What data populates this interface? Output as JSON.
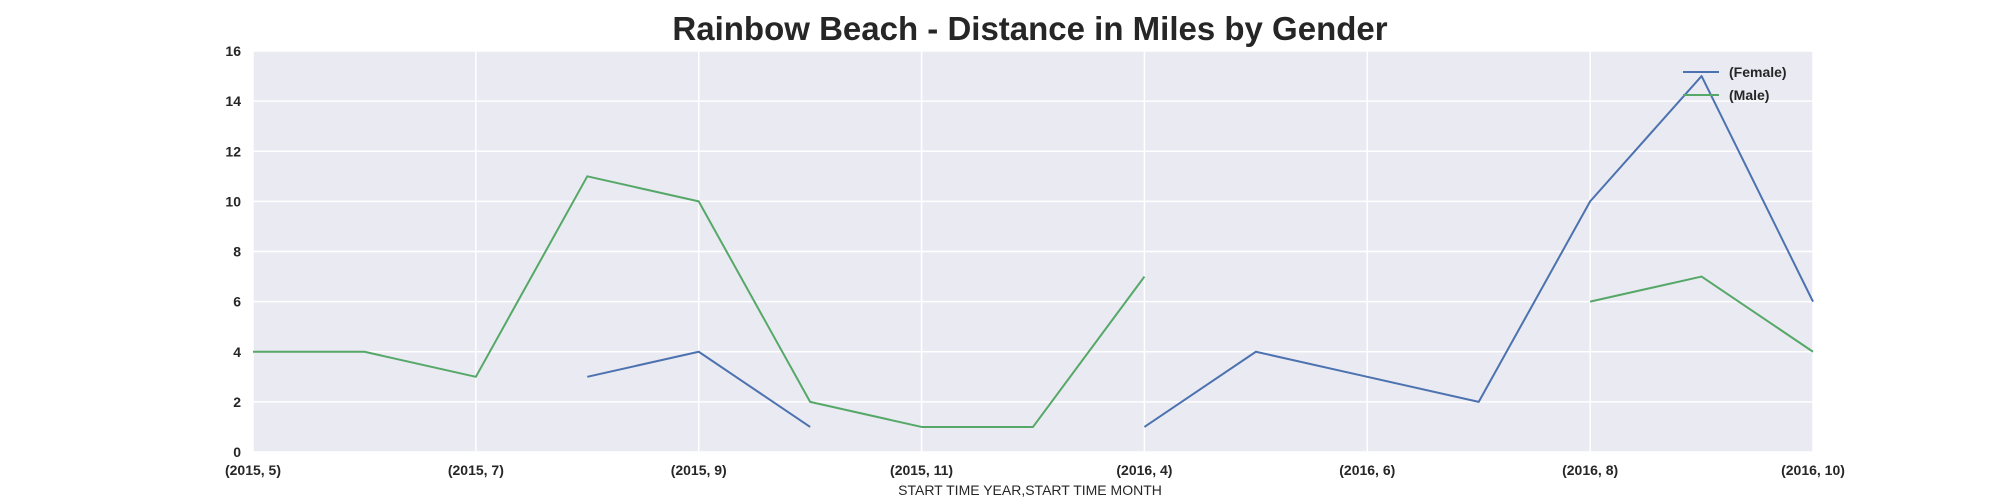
{
  "chart_data": {
    "type": "line",
    "title": "Rainbow Beach - Distance in Miles by Gender",
    "xlabel": "START TIME YEAR,START TIME MONTH",
    "ylabel": "",
    "ylim": [
      0,
      16
    ],
    "yticks": [
      0,
      2,
      4,
      6,
      8,
      10,
      12,
      14,
      16
    ],
    "categories": [
      "(2015, 5)",
      "(2015, 6)",
      "(2015, 7)",
      "(2015, 8)",
      "(2015, 9)",
      "(2015, 10)",
      "(2015, 11)",
      "(2015, 12)",
      "(2016, 4)",
      "(2016, 5)",
      "(2016, 6)",
      "(2016, 7)",
      "(2016, 8)",
      "(2016, 9)",
      "(2016, 10)"
    ],
    "xtick_labels": [
      "(2015, 5)",
      "(2015, 7)",
      "(2015, 9)",
      "(2015, 11)",
      "(2016, 4)",
      "(2016, 6)",
      "(2016, 8)",
      "(2016, 10)"
    ],
    "grid": true,
    "legend_position": "top-right",
    "series": [
      {
        "name": "(Female)",
        "color": "#4c72b0",
        "values": [
          null,
          null,
          null,
          3,
          4,
          1,
          null,
          null,
          1,
          4,
          3,
          2,
          10,
          15,
          6
        ]
      },
      {
        "name": "(Male)",
        "color": "#55a868",
        "values": [
          4,
          4,
          3,
          11,
          10,
          2,
          1,
          1,
          7,
          null,
          null,
          null,
          6,
          7,
          4
        ]
      }
    ]
  }
}
